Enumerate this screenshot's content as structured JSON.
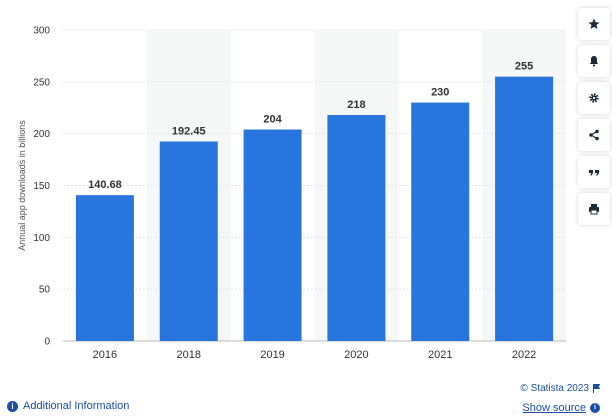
{
  "chart_data": {
    "type": "bar",
    "categories": [
      "2016",
      "2018",
      "2019",
      "2020",
      "2021",
      "2022"
    ],
    "values": [
      140.68,
      192.45,
      204,
      218,
      230,
      255
    ],
    "data_labels": [
      "140.68",
      "192.45",
      "204",
      "218",
      "230",
      "255"
    ],
    "title": "",
    "xlabel": "",
    "ylabel": "Annual app downloads in billions",
    "ylim": [
      0,
      300
    ],
    "yticks": [
      0,
      50,
      100,
      150,
      200,
      250,
      300
    ],
    "grid": true,
    "bar_color": "#2876dd",
    "alt_band_color": "#f5f8f7"
  },
  "toolbar": {
    "buttons": [
      {
        "icon": "star-icon",
        "name": "favorite-button"
      },
      {
        "icon": "bell-icon",
        "name": "notification-button"
      },
      {
        "icon": "gear-icon",
        "name": "settings-button"
      },
      {
        "icon": "share-icon",
        "name": "share-button"
      },
      {
        "icon": "quote-icon",
        "name": "cite-button"
      },
      {
        "icon": "print-icon",
        "name": "print-button"
      }
    ]
  },
  "footer": {
    "additional_info": "Additional Information",
    "info_glyph": "i",
    "credit": "© Statista 2023",
    "show_source": "Show source",
    "source_glyph": "i"
  }
}
